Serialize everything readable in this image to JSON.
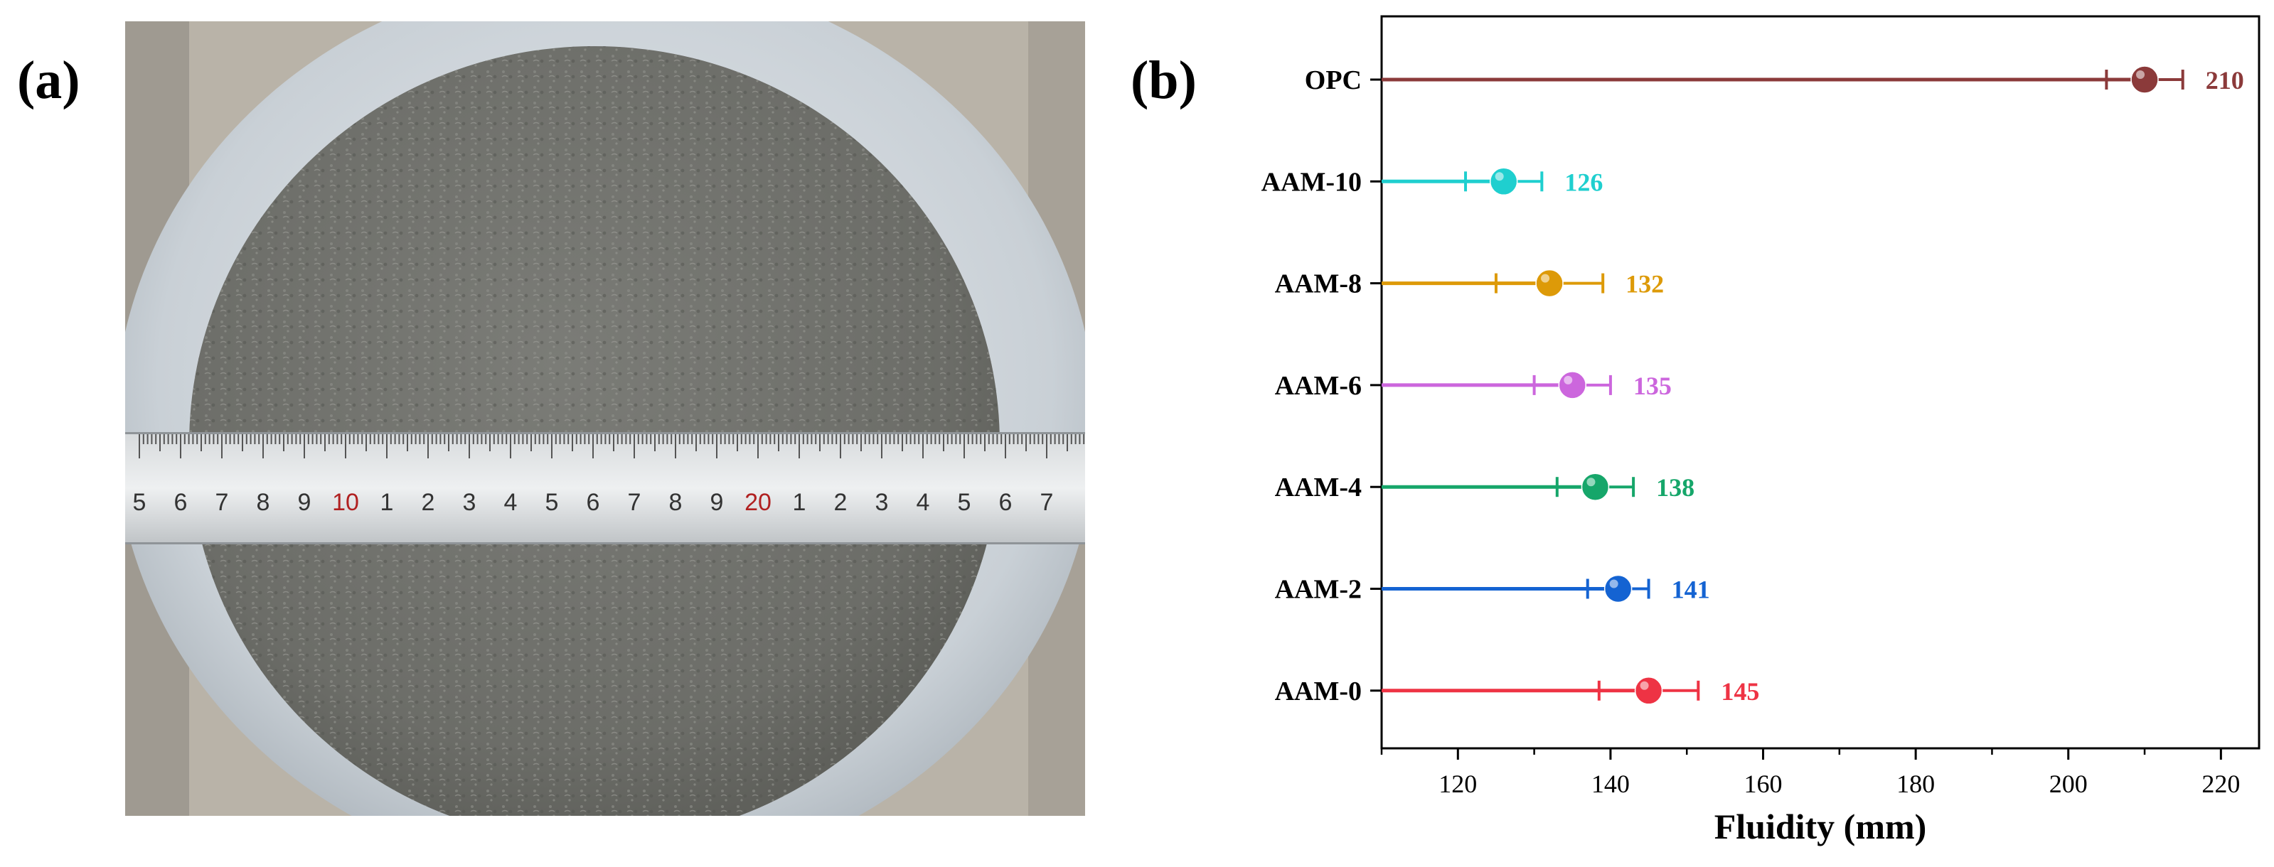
{
  "panels": {
    "a_label": "(a)",
    "b_label": "(b)"
  },
  "photo": {
    "ruler_numbers": [
      "5",
      "6",
      "7",
      "8",
      "9",
      "10",
      "1",
      "2",
      "3",
      "4",
      "5",
      "6",
      "7",
      "8",
      "9",
      "20",
      "1",
      "2",
      "3",
      "4",
      "5",
      "6",
      "7"
    ],
    "ruler_red": [
      "10",
      "20"
    ]
  },
  "chart_data": {
    "type": "scatter",
    "orientation": "horizontal",
    "xlabel": "Fluidity (mm)",
    "xlim": [
      110,
      225
    ],
    "xticks": [
      120,
      140,
      160,
      180,
      200,
      220
    ],
    "categories": [
      "OPC",
      "AAM-10",
      "AAM-8",
      "AAM-6",
      "AAM-4",
      "AAM-2",
      "AAM-0"
    ],
    "values": [
      210,
      126,
      132,
      135,
      138,
      141,
      145
    ],
    "value_labels": [
      "210",
      "126",
      "132",
      "135",
      "138",
      "141",
      "145"
    ],
    "errors": [
      5,
      5,
      7,
      5,
      5,
      4,
      6.5
    ],
    "colors": [
      "#8b3a3a",
      "#1fcfcf",
      "#dd9a08",
      "#cc66dd",
      "#16a66a",
      "#1463d2",
      "#ee3344"
    ],
    "grid": false,
    "legend": "none"
  }
}
